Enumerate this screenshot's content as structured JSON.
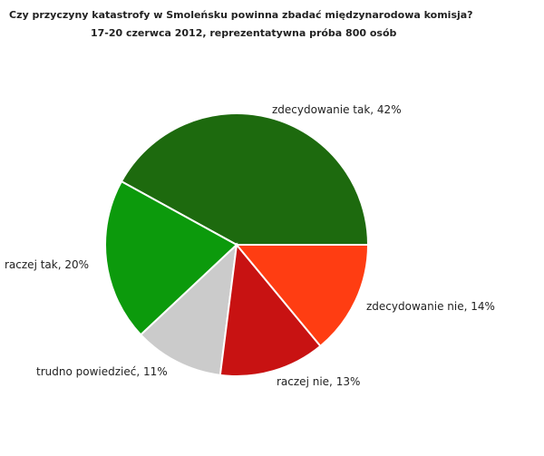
{
  "chart_data": {
    "type": "pie",
    "title": "Czy przyczyny katastrofy w Smoleńsku powinna zbadać międzynarodowa komisja?",
    "subtitle": "17-20 czerwca 2012, reprezentatywna próba 800 osób",
    "categories": [
      "zdecydowanie tak",
      "raczej tak",
      "trudno powiedzieć",
      "raczej nie",
      "zdecydowanie nie"
    ],
    "values": [
      42,
      20,
      11,
      13,
      14
    ],
    "value_labels": [
      "42%",
      "20%",
      "11%",
      "13%",
      "14%"
    ],
    "colors": [
      "#1d6a0e",
      "#0c9a0c",
      "#cbcbcb",
      "#c81212",
      "#ff3d12"
    ]
  }
}
